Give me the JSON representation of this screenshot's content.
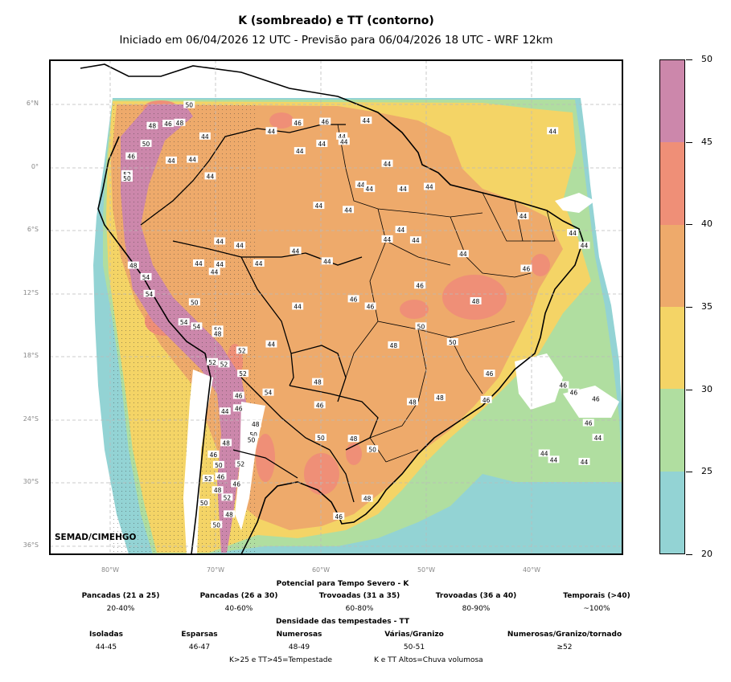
{
  "title": "K (sombreado) e TT (contorno)",
  "subtitle": "Iniciado em 06/04/2026 12 UTC - Previsão para 06/04/2026 18 UTC - WRF 12km",
  "credit": "SEMAD/CIMEHGO",
  "lat_labels": [
    "6°N",
    "0°",
    "6°S",
    "12°S",
    "18°S",
    "24°S",
    "30°S",
    "36°S"
  ],
  "lon_labels": [
    "80°W",
    "70°W",
    "60°W",
    "50°W",
    "40°W"
  ],
  "colorbar": {
    "ticks": [
      "20",
      "25",
      "30",
      "35",
      "40",
      "45",
      "50"
    ],
    "colors": [
      "#93d3d4",
      "#b0dea0",
      "#f4d466",
      "#eeaa6b",
      "#ef8f77",
      "#cc87ab"
    ]
  },
  "colors": {
    "k_20_25": "#93d3d4",
    "k_25_30": "#b0dea0",
    "k_30_35": "#f4d466",
    "k_35_40": "#eeaa6b",
    "k_40_45": "#ef8f77",
    "k_45_50": "#cc87ab"
  },
  "tt_labels": [
    {
      "v": "50",
      "lon": -72.5,
      "lat": 6.0
    },
    {
      "v": "48",
      "lon": -76.0,
      "lat": 4.0
    },
    {
      "v": "46",
      "lon": -74.5,
      "lat": 4.2
    },
    {
      "v": "48",
      "lon": -73.4,
      "lat": 4.3
    },
    {
      "v": "44",
      "lon": -71.0,
      "lat": 3.0
    },
    {
      "v": "50",
      "lon": -76.6,
      "lat": 2.3
    },
    {
      "v": "44",
      "lon": -64.7,
      "lat": 3.5
    },
    {
      "v": "46",
      "lon": -62.2,
      "lat": 4.3
    },
    {
      "v": "46",
      "lon": -59.6,
      "lat": 4.4
    },
    {
      "v": "44",
      "lon": -59.9,
      "lat": 2.3
    },
    {
      "v": "44",
      "lon": -58.0,
      "lat": 3.0
    },
    {
      "v": "44",
      "lon": -57.8,
      "lat": 2.5
    },
    {
      "v": "44",
      "lon": -55.7,
      "lat": 4.5
    },
    {
      "v": "44",
      "lon": -62.0,
      "lat": 1.6
    },
    {
      "v": "46",
      "lon": -78.0,
      "lat": 1.1
    },
    {
      "v": "44",
      "lon": -74.2,
      "lat": 0.7
    },
    {
      "v": "44",
      "lon": -72.2,
      "lat": 0.8
    },
    {
      "v": "44",
      "lon": -53.7,
      "lat": 0.4
    },
    {
      "v": "52",
      "lon": -78.4,
      "lat": -0.6
    },
    {
      "v": "50",
      "lon": -78.4,
      "lat": -1.0
    },
    {
      "v": "44",
      "lon": -70.5,
      "lat": -0.8
    },
    {
      "v": "44",
      "lon": -38.0,
      "lat": 3.5
    },
    {
      "v": "44",
      "lon": -56.2,
      "lat": -1.6
    },
    {
      "v": "44",
      "lon": -55.4,
      "lat": -2.0
    },
    {
      "v": "44",
      "lon": -52.2,
      "lat": -2.0
    },
    {
      "v": "44",
      "lon": -49.7,
      "lat": -1.8
    },
    {
      "v": "44",
      "lon": -60.2,
      "lat": -3.6
    },
    {
      "v": "44",
      "lon": -57.4,
      "lat": -4.0
    },
    {
      "v": "44",
      "lon": -40.8,
      "lat": -4.6
    },
    {
      "v": "44",
      "lon": -52.4,
      "lat": -5.9
    },
    {
      "v": "44",
      "lon": -53.7,
      "lat": -6.8
    },
    {
      "v": "44",
      "lon": -51.0,
      "lat": -6.9
    },
    {
      "v": "44",
      "lon": -36.1,
      "lat": -6.2
    },
    {
      "v": "44",
      "lon": -35.0,
      "lat": -7.4
    },
    {
      "v": "44",
      "lon": -69.6,
      "lat": -7.0
    },
    {
      "v": "44",
      "lon": -67.7,
      "lat": -7.4
    },
    {
      "v": "44",
      "lon": -62.4,
      "lat": -7.9
    },
    {
      "v": "44",
      "lon": -71.6,
      "lat": -9.1
    },
    {
      "v": "44",
      "lon": -69.6,
      "lat": -9.2
    },
    {
      "v": "44",
      "lon": -70.1,
      "lat": -9.9
    },
    {
      "v": "44",
      "lon": -65.9,
      "lat": -9.1
    },
    {
      "v": "44",
      "lon": -59.4,
      "lat": -8.9
    },
    {
      "v": "44",
      "lon": -46.5,
      "lat": -8.2
    },
    {
      "v": "46",
      "lon": -40.5,
      "lat": -9.6
    },
    {
      "v": "48",
      "lon": -77.8,
      "lat": -9.3
    },
    {
      "v": "54",
      "lon": -76.6,
      "lat": -10.4
    },
    {
      "v": "54",
      "lon": -76.3,
      "lat": -12.0
    },
    {
      "v": "46",
      "lon": -50.6,
      "lat": -11.2
    },
    {
      "v": "50",
      "lon": -72.0,
      "lat": -12.8
    },
    {
      "v": "44",
      "lon": -62.2,
      "lat": -13.2
    },
    {
      "v": "46",
      "lon": -56.9,
      "lat": -12.5
    },
    {
      "v": "46",
      "lon": -55.3,
      "lat": -13.2
    },
    {
      "v": "48",
      "lon": -45.3,
      "lat": -12.7
    },
    {
      "v": "54",
      "lon": -73.0,
      "lat": -14.7
    },
    {
      "v": "54",
      "lon": -71.8,
      "lat": -15.1
    },
    {
      "v": "50",
      "lon": -69.8,
      "lat": -15.4
    },
    {
      "v": "48",
      "lon": -69.8,
      "lat": -15.8
    },
    {
      "v": "50",
      "lon": -50.5,
      "lat": -15.1
    },
    {
      "v": "50",
      "lon": -47.5,
      "lat": -16.6
    },
    {
      "v": "44",
      "lon": -64.7,
      "lat": -16.8
    },
    {
      "v": "52",
      "lon": -67.5,
      "lat": -17.4
    },
    {
      "v": "48",
      "lon": -53.1,
      "lat": -16.9
    },
    {
      "v": "52",
      "lon": -69.2,
      "lat": -18.7
    },
    {
      "v": "52",
      "lon": -70.3,
      "lat": -18.5
    },
    {
      "v": "52",
      "lon": -67.4,
      "lat": -19.6
    },
    {
      "v": "46",
      "lon": -44.0,
      "lat": -19.6
    },
    {
      "v": "48",
      "lon": -60.3,
      "lat": -20.4
    },
    {
      "v": "46",
      "lon": -37.0,
      "lat": -20.7
    },
    {
      "v": "54",
      "lon": -65.0,
      "lat": -21.4
    },
    {
      "v": "46",
      "lon": -67.8,
      "lat": -21.7
    },
    {
      "v": "48",
      "lon": -48.7,
      "lat": -21.9
    },
    {
      "v": "48",
      "lon": -51.3,
      "lat": -22.3
    },
    {
      "v": "46",
      "lon": -44.3,
      "lat": -22.1
    },
    {
      "v": "46",
      "lon": -60.1,
      "lat": -22.6
    },
    {
      "v": "46",
      "lon": -36.0,
      "lat": -21.4
    },
    {
      "v": "46",
      "lon": -33.9,
      "lat": -22.0
    },
    {
      "v": "44",
      "lon": -69.1,
      "lat": -23.2
    },
    {
      "v": "46",
      "lon": -67.8,
      "lat": -22.9
    },
    {
      "v": "46",
      "lon": -34.6,
      "lat": -24.3
    },
    {
      "v": "48",
      "lon": -66.2,
      "lat": -24.4
    },
    {
      "v": "50",
      "lon": -66.4,
      "lat": -25.4
    },
    {
      "v": "50",
      "lon": -66.6,
      "lat": -25.9
    },
    {
      "v": "44",
      "lon": -33.7,
      "lat": -25.7
    },
    {
      "v": "48",
      "lon": -69.0,
      "lat": -26.2
    },
    {
      "v": "50",
      "lon": -60.0,
      "lat": -25.7
    },
    {
      "v": "48",
      "lon": -56.9,
      "lat": -25.8
    },
    {
      "v": "50",
      "lon": -55.1,
      "lat": -26.8
    },
    {
      "v": "46",
      "lon": -70.2,
      "lat": -27.3
    },
    {
      "v": "44",
      "lon": -38.8,
      "lat": -27.2
    },
    {
      "v": "50",
      "lon": -69.7,
      "lat": -28.3
    },
    {
      "v": "52",
      "lon": -67.6,
      "lat": -28.2
    },
    {
      "v": "44",
      "lon": -35.0,
      "lat": -28.0
    },
    {
      "v": "52",
      "lon": -70.7,
      "lat": -29.6
    },
    {
      "v": "46",
      "lon": -69.5,
      "lat": -29.4
    },
    {
      "v": "46",
      "lon": -68.0,
      "lat": -30.1
    },
    {
      "v": "48",
      "lon": -69.8,
      "lat": -30.7
    },
    {
      "v": "52",
      "lon": -68.9,
      "lat": -31.4
    },
    {
      "v": "48",
      "lon": -55.6,
      "lat": -31.5
    },
    {
      "v": "50",
      "lon": -71.1,
      "lat": -31.9
    },
    {
      "v": "48",
      "lon": -68.7,
      "lat": -33.0
    },
    {
      "v": "46",
      "lon": -58.3,
      "lat": -33.2
    },
    {
      "v": "50",
      "lon": -69.9,
      "lat": -34.0
    },
    {
      "v": "44",
      "lon": -37.9,
      "lat": -27.8
    }
  ],
  "legend": {
    "k_title": "Potencial para Tempo Severo - K",
    "k_items": [
      {
        "name": "Pancadas (21 a 25)",
        "value": "20-40%"
      },
      {
        "name": "Pancadas (26 a 30)",
        "value": "40-60%"
      },
      {
        "name": "Trovoadas (31 a 35)",
        "value": "60-80%"
      },
      {
        "name": "Trovoadas (36 a 40)",
        "value": "80-90%"
      },
      {
        "name": "Temporais (>40)",
        "value": "~100%"
      }
    ],
    "tt_title": "Densidade das tempestades - TT",
    "tt_items": [
      {
        "name": "Isoladas",
        "value": "44-45"
      },
      {
        "name": "Esparsas",
        "value": "46-47"
      },
      {
        "name": "Numerosas",
        "value": "48-49"
      },
      {
        "name": "Várias/Granizo",
        "value": "50-51"
      },
      {
        "name": "Numerosas/Granizo/tornado",
        "value": "≥52"
      }
    ],
    "footnote1": "K>25 e TT>45=Tempestade",
    "footnote2": "K e TT Altos=Chuva volumosa"
  }
}
